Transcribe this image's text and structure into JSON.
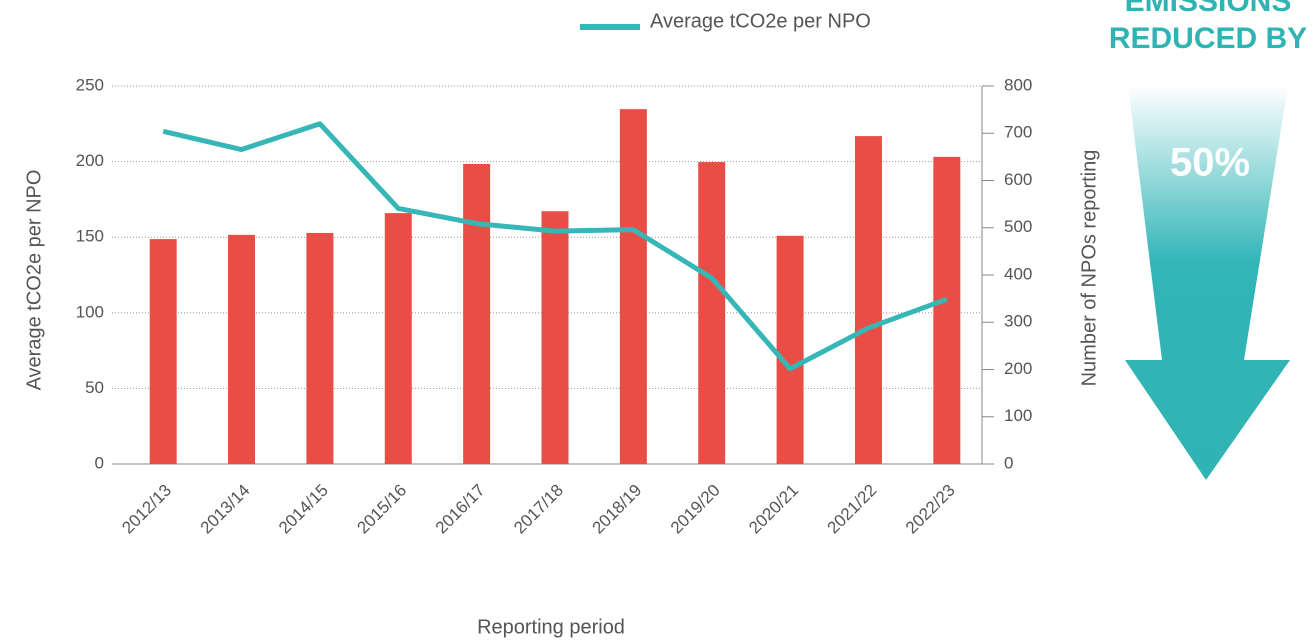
{
  "chart_data": {
    "type": "bar-line",
    "x_label": "Reporting period",
    "y_label": "Average tCO2e per NPO",
    "y2_label": "Number of NPOs reporting",
    "categories": [
      "2012/13",
      "2013/14",
      "2014/15",
      "2015/16",
      "2016/17",
      "2017/18",
      "2018/19",
      "2019/20",
      "2020/21",
      "2021/22",
      "2022/23"
    ],
    "series": [
      {
        "type": "bar",
        "axis": "y2",
        "color": "#e84e45",
        "values": [
          476,
          485,
          489,
          531,
          635,
          535,
          751,
          639,
          483,
          694,
          650
        ]
      },
      {
        "type": "line",
        "name": "Average tCO2e per NPO",
        "color": "#36b6b6",
        "values": [
          220,
          208,
          225,
          169,
          159,
          154,
          155,
          123,
          63,
          90,
          109
        ]
      }
    ],
    "ylim": [
      0,
      250
    ],
    "yticks": [
      0,
      50,
      100,
      150,
      200,
      250
    ],
    "y2lim": [
      0,
      800
    ],
    "y2ticks": [
      0,
      100,
      200,
      300,
      400,
      500,
      600,
      700,
      800
    ],
    "grid": true,
    "legend": "top",
    "callout": {
      "title_lines": [
        "EMISSIONS",
        "REDUCED BY"
      ],
      "value": "50%"
    }
  }
}
